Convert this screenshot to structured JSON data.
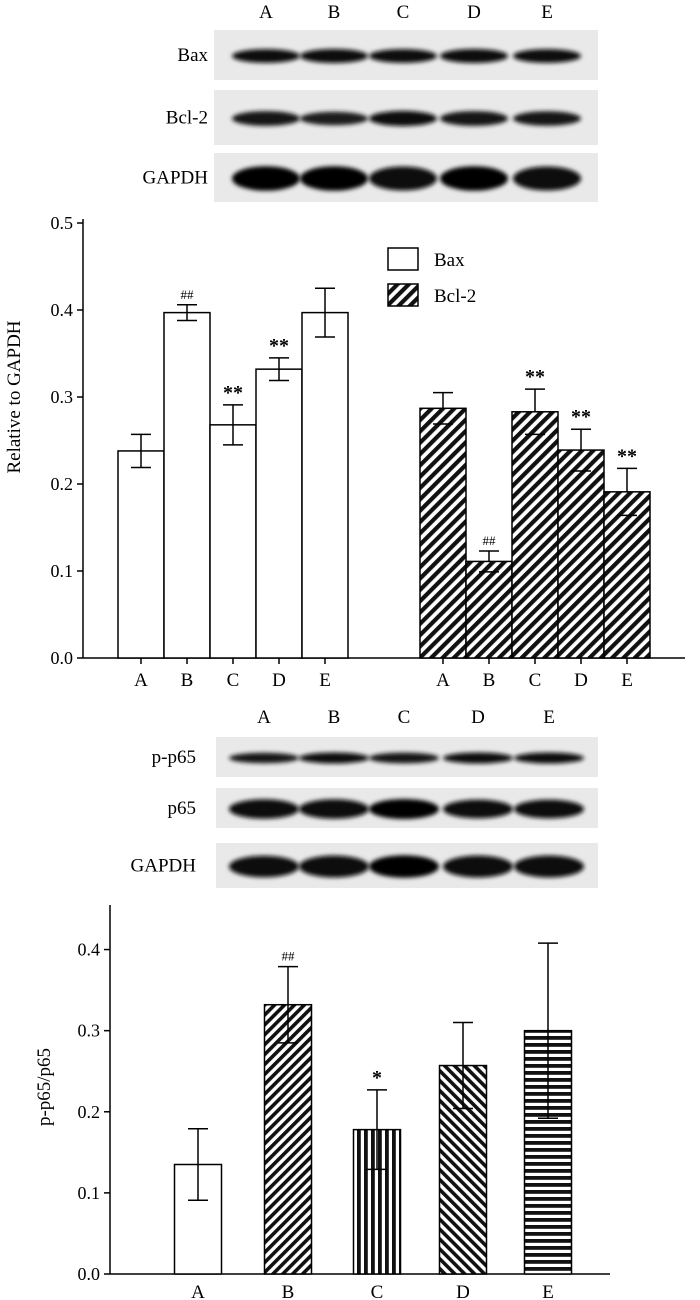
{
  "blot_top": {
    "lane_labels": [
      "A",
      "B",
      "C",
      "D",
      "E"
    ],
    "rows": [
      {
        "label": "Bax",
        "intensity": [
          0.8,
          0.85,
          0.8,
          0.85,
          0.8
        ]
      },
      {
        "label": "Bcl-2",
        "intensity": [
          0.75,
          0.55,
          0.8,
          0.75,
          0.7
        ]
      },
      {
        "label": "GAPDH",
        "intensity": [
          1.0,
          1.0,
          0.95,
          1.0,
          0.95
        ]
      }
    ]
  },
  "blot_bottom": {
    "lane_labels": [
      "A",
      "B",
      "C",
      "D",
      "E"
    ],
    "rows": [
      {
        "label": "p-p65",
        "intensity": [
          0.7,
          0.8,
          0.75,
          0.8,
          0.8
        ]
      },
      {
        "label": "p65",
        "intensity": [
          0.95,
          0.95,
          1.0,
          0.85,
          0.85
        ]
      },
      {
        "label": "GAPDH",
        "intensity": [
          0.9,
          0.95,
          1.0,
          0.95,
          0.95
        ]
      }
    ]
  },
  "chart_data": [
    {
      "type": "bar",
      "ylabel": "Relative to GAPDH",
      "ylim": [
        0,
        0.5
      ],
      "yticks": [
        "0.0",
        "0.1",
        "0.2",
        "0.3",
        "0.4",
        "0.5"
      ],
      "legend": {
        "position": "top-right",
        "entries": [
          "Bax",
          "Bcl-2"
        ]
      },
      "groups": [
        {
          "name": "Bax",
          "fill": "white",
          "categories": [
            "A",
            "B",
            "C",
            "D",
            "E"
          ],
          "values": [
            0.238,
            0.397,
            0.268,
            0.332,
            0.397
          ],
          "errors": [
            0.019,
            0.009,
            0.023,
            0.013,
            0.028
          ],
          "annotations": [
            "",
            "##",
            "**",
            "**",
            ""
          ]
        },
        {
          "name": "Bcl-2",
          "fill": "hatch",
          "categories": [
            "A",
            "B",
            "C",
            "D",
            "E"
          ],
          "values": [
            0.287,
            0.111,
            0.283,
            0.239,
            0.191
          ],
          "errors": [
            0.018,
            0.012,
            0.026,
            0.024,
            0.027
          ],
          "annotations": [
            "",
            "##",
            "**",
            "**",
            "**"
          ]
        }
      ]
    },
    {
      "type": "bar",
      "ylabel": "p-p65/p65",
      "ylim": [
        0,
        0.45
      ],
      "yticks": [
        "0.0",
        "0.1",
        "0.2",
        "0.3",
        "0.4"
      ],
      "categories": [
        "A",
        "B",
        "C",
        "D",
        "E"
      ],
      "values": [
        0.135,
        0.332,
        0.178,
        0.257,
        0.3
      ],
      "errors": [
        0.044,
        0.047,
        0.049,
        0.053,
        0.108
      ],
      "annotations": [
        "",
        "##",
        "*",
        "",
        ""
      ],
      "fills": [
        "white",
        "diag-right",
        "vertical",
        "diag-left",
        "horizontal"
      ]
    }
  ]
}
